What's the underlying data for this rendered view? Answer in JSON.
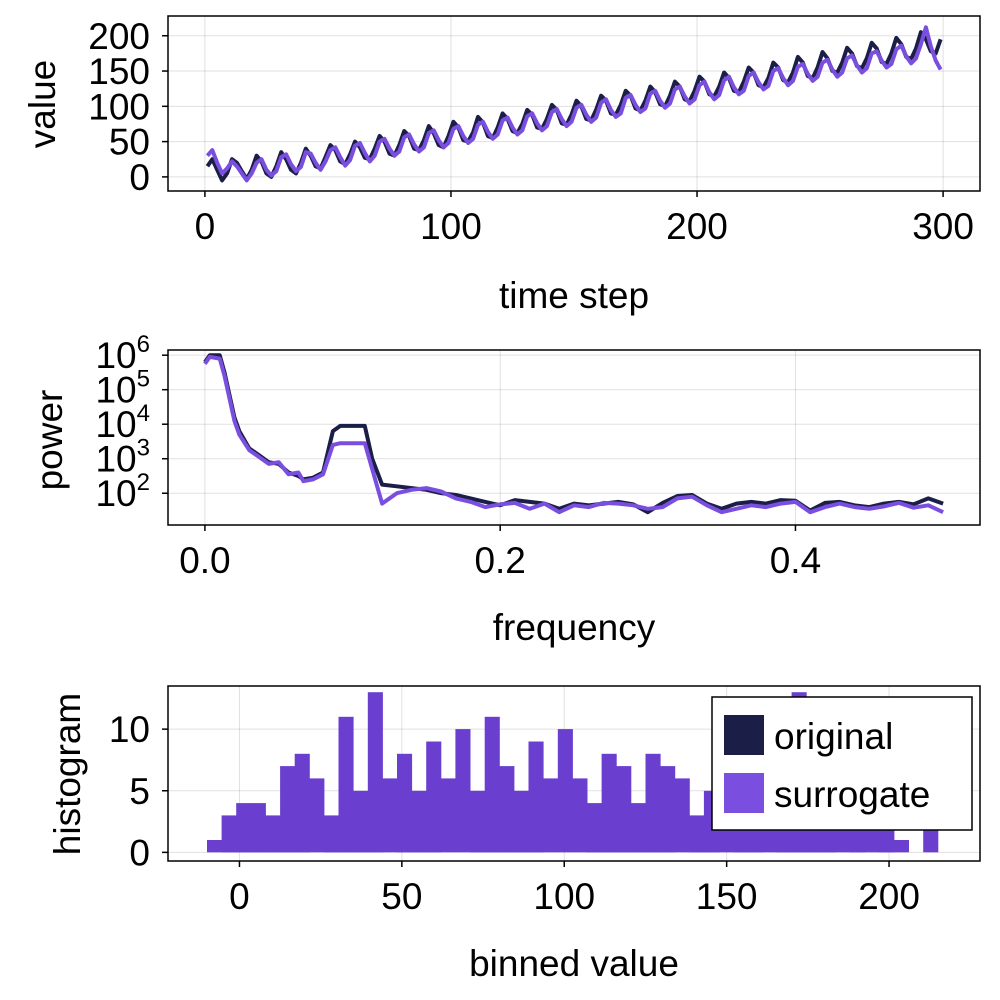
{
  "colors": {
    "original": "#1b1f48",
    "surrogate": "#7a4fe0",
    "histogram_fill": "#6a3fd0"
  },
  "legend": {
    "items": [
      {
        "label": "original",
        "color": "#1b1f48"
      },
      {
        "label": "surrogate",
        "color": "#7a4fe0"
      }
    ]
  },
  "chart_data": [
    {
      "type": "line",
      "title": "",
      "xlabel": "time step",
      "ylabel": "value",
      "xlim": [
        -15,
        315
      ],
      "ylim": [
        -20,
        228
      ],
      "xticks": [
        0,
        100,
        200,
        300
      ],
      "yticks": [
        0,
        50,
        100,
        150,
        200
      ],
      "xtick_labels": [
        "0",
        "100",
        "200",
        "300"
      ],
      "ytick_labels": [
        "0",
        "50",
        "100",
        "150",
        "200"
      ],
      "grid": true,
      "series": [
        {
          "name": "original",
          "x": [
            1,
            3,
            5,
            7,
            9,
            11,
            13,
            15,
            17,
            19,
            21,
            23,
            25,
            27,
            29,
            31,
            33,
            35,
            37,
            39,
            41,
            43,
            45,
            47,
            49,
            51,
            53,
            55,
            57,
            59,
            61,
            63,
            65,
            67,
            69,
            71,
            73,
            75,
            77,
            79,
            81,
            83,
            85,
            87,
            89,
            91,
            93,
            95,
            97,
            99,
            101,
            103,
            105,
            107,
            109,
            111,
            113,
            115,
            117,
            119,
            121,
            123,
            125,
            127,
            129,
            131,
            133,
            135,
            137,
            139,
            141,
            143,
            145,
            147,
            149,
            151,
            153,
            155,
            157,
            159,
            161,
            163,
            165,
            167,
            169,
            171,
            173,
            175,
            177,
            179,
            181,
            183,
            185,
            187,
            189,
            191,
            193,
            195,
            197,
            199,
            201,
            203,
            205,
            207,
            209,
            211,
            213,
            215,
            217,
            219,
            221,
            223,
            225,
            227,
            229,
            231,
            233,
            235,
            237,
            239,
            241,
            243,
            245,
            247,
            249,
            251,
            253,
            255,
            257,
            259,
            261,
            263,
            265,
            267,
            269,
            271,
            273,
            275,
            277,
            279,
            281,
            283,
            285,
            287,
            289,
            291,
            293,
            295,
            297,
            299
          ],
          "y": [
            15,
            25,
            10,
            -5,
            5,
            25,
            20,
            8,
            -3,
            10,
            30,
            22,
            5,
            0,
            15,
            35,
            25,
            10,
            5,
            20,
            40,
            30,
            15,
            12,
            28,
            45,
            38,
            22,
            18,
            32,
            50,
            42,
            27,
            25,
            40,
            58,
            50,
            33,
            30,
            45,
            65,
            58,
            40,
            38,
            52,
            72,
            62,
            45,
            42,
            58,
            78,
            70,
            52,
            50,
            63,
            85,
            77,
            58,
            55,
            70,
            90,
            82,
            65,
            62,
            75,
            95,
            88,
            70,
            68,
            82,
            102,
            95,
            76,
            74,
            88,
            108,
            100,
            82,
            80,
            95,
            115,
            108,
            90,
            88,
            102,
            122,
            115,
            97,
            94,
            108,
            128,
            120,
            103,
            100,
            115,
            135,
            128,
            110,
            107,
            122,
            142,
            135,
            117,
            114,
            128,
            148,
            140,
            122,
            120,
            135,
            155,
            148,
            130,
            127,
            140,
            162,
            155,
            137,
            134,
            148,
            170,
            162,
            143,
            140,
            155,
            177,
            168,
            150,
            148,
            162,
            183,
            175,
            157,
            154,
            168,
            190,
            182,
            163,
            160,
            175,
            197,
            188,
            170,
            167,
            182,
            205,
            195,
            178,
            175,
            195
          ]
        },
        {
          "name": "surrogate",
          "x": [
            1,
            3,
            5,
            7,
            9,
            11,
            13,
            15,
            17,
            19,
            21,
            23,
            25,
            27,
            29,
            31,
            33,
            35,
            37,
            39,
            41,
            43,
            45,
            47,
            49,
            51,
            53,
            55,
            57,
            59,
            61,
            63,
            65,
            67,
            69,
            71,
            73,
            75,
            77,
            79,
            81,
            83,
            85,
            87,
            89,
            91,
            93,
            95,
            97,
            99,
            101,
            103,
            105,
            107,
            109,
            111,
            113,
            115,
            117,
            119,
            121,
            123,
            125,
            127,
            129,
            131,
            133,
            135,
            137,
            139,
            141,
            143,
            145,
            147,
            149,
            151,
            153,
            155,
            157,
            159,
            161,
            163,
            165,
            167,
            169,
            171,
            173,
            175,
            177,
            179,
            181,
            183,
            185,
            187,
            189,
            191,
            193,
            195,
            197,
            199,
            201,
            203,
            205,
            207,
            209,
            211,
            213,
            215,
            217,
            219,
            221,
            223,
            225,
            227,
            229,
            231,
            233,
            235,
            237,
            239,
            241,
            243,
            245,
            247,
            249,
            251,
            253,
            255,
            257,
            259,
            261,
            263,
            265,
            267,
            269,
            271,
            273,
            275,
            277,
            279,
            281,
            283,
            285,
            287,
            289,
            291,
            293,
            295,
            297,
            299
          ],
          "y": [
            30,
            38,
            20,
            5,
            12,
            22,
            15,
            5,
            -5,
            5,
            20,
            25,
            10,
            2,
            8,
            28,
            32,
            18,
            8,
            14,
            35,
            33,
            20,
            10,
            22,
            38,
            42,
            28,
            16,
            24,
            44,
            48,
            34,
            22,
            30,
            50,
            54,
            40,
            30,
            36,
            56,
            60,
            46,
            36,
            42,
            62,
            66,
            52,
            42,
            48,
            68,
            72,
            58,
            48,
            54,
            74,
            78,
            64,
            54,
            60,
            80,
            84,
            70,
            60,
            66,
            86,
            90,
            76,
            66,
            72,
            92,
            96,
            82,
            72,
            78,
            98,
            102,
            88,
            78,
            84,
            105,
            110,
            95,
            85,
            90,
            112,
            116,
            102,
            92,
            97,
            118,
            122,
            108,
            98,
            104,
            124,
            128,
            114,
            104,
            110,
            130,
            135,
            120,
            110,
            116,
            137,
            142,
            127,
            117,
            122,
            143,
            148,
            134,
            124,
            129,
            150,
            154,
            140,
            130,
            136,
            156,
            160,
            146,
            136,
            142,
            162,
            166,
            152,
            142,
            148,
            168,
            172,
            158,
            148,
            154,
            175,
            178,
            165,
            155,
            160,
            181,
            186,
            171,
            161,
            168,
            188,
            212,
            185,
            165,
            152
          ]
        }
      ]
    },
    {
      "type": "line",
      "title": "",
      "xlabel": "frequency",
      "ylabel": "power",
      "yscale": "log10",
      "xlim": [
        -0.025,
        0.525
      ],
      "ylim_log10": [
        1.08,
        6.15
      ],
      "xticks": [
        0.0,
        0.2,
        0.4
      ],
      "xtick_labels": [
        "0.0",
        "0.2",
        "0.4"
      ],
      "yticks_log10": [
        2,
        3,
        4,
        5,
        6
      ],
      "ytick_labels": [
        {
          "base": "10",
          "exp": "2"
        },
        {
          "base": "10",
          "exp": "3"
        },
        {
          "base": "10",
          "exp": "4"
        },
        {
          "base": "10",
          "exp": "5"
        },
        {
          "base": "10",
          "exp": "6"
        }
      ],
      "grid": true,
      "series": [
        {
          "name": "original",
          "x": [
            0,
            0.0033,
            0.01,
            0.0133,
            0.02,
            0.0233,
            0.03,
            0.0367,
            0.0433,
            0.05,
            0.0567,
            0.0633,
            0.0667,
            0.0733,
            0.08,
            0.0867,
            0.0917,
            0.1,
            0.1083,
            0.1133,
            0.12,
            0.13,
            0.14,
            0.15,
            0.16,
            0.17,
            0.18,
            0.19,
            0.2,
            0.21,
            0.22,
            0.23,
            0.24,
            0.25,
            0.26,
            0.27,
            0.28,
            0.29,
            0.3,
            0.31,
            0.32,
            0.33,
            0.34,
            0.35,
            0.36,
            0.37,
            0.38,
            0.39,
            0.4,
            0.41,
            0.42,
            0.43,
            0.44,
            0.45,
            0.46,
            0.47,
            0.48,
            0.49,
            0.5
          ],
          "y_log10": [
            5.8,
            6.0,
            6.0,
            5.5,
            4.2,
            3.8,
            3.3,
            3.1,
            2.9,
            2.85,
            2.6,
            2.5,
            2.4,
            2.45,
            2.6,
            3.8,
            3.95,
            3.95,
            3.95,
            3.0,
            2.25,
            2.2,
            2.15,
            2.1,
            2.0,
            1.95,
            1.85,
            1.75,
            1.65,
            1.8,
            1.75,
            1.7,
            1.55,
            1.7,
            1.65,
            1.7,
            1.75,
            1.68,
            1.45,
            1.72,
            1.92,
            1.95,
            1.7,
            1.55,
            1.7,
            1.75,
            1.7,
            1.8,
            1.78,
            1.5,
            1.72,
            1.75,
            1.65,
            1.6,
            1.7,
            1.75,
            1.68,
            1.85,
            1.7
          ]
        },
        {
          "name": "surrogate",
          "x": [
            0,
            0.0033,
            0.01,
            0.0133,
            0.02,
            0.0233,
            0.03,
            0.0367,
            0.0433,
            0.05,
            0.0567,
            0.0633,
            0.0667,
            0.0733,
            0.08,
            0.0867,
            0.0917,
            0.1,
            0.1083,
            0.1133,
            0.12,
            0.13,
            0.14,
            0.15,
            0.16,
            0.17,
            0.18,
            0.19,
            0.2,
            0.21,
            0.22,
            0.23,
            0.24,
            0.25,
            0.26,
            0.27,
            0.28,
            0.29,
            0.3,
            0.31,
            0.32,
            0.33,
            0.34,
            0.35,
            0.36,
            0.37,
            0.38,
            0.39,
            0.4,
            0.41,
            0.42,
            0.43,
            0.44,
            0.45,
            0.46,
            0.47,
            0.48,
            0.49,
            0.5
          ],
          "y_log10": [
            5.75,
            5.95,
            5.9,
            5.4,
            4.1,
            3.7,
            3.25,
            3.05,
            2.85,
            2.9,
            2.55,
            2.6,
            2.35,
            2.4,
            2.55,
            3.4,
            3.45,
            3.45,
            3.45,
            2.7,
            1.7,
            2.0,
            2.1,
            2.15,
            2.05,
            1.85,
            1.75,
            1.6,
            1.68,
            1.72,
            1.55,
            1.7,
            1.45,
            1.65,
            1.6,
            1.72,
            1.7,
            1.65,
            1.55,
            1.6,
            1.85,
            1.9,
            1.65,
            1.45,
            1.55,
            1.65,
            1.6,
            1.7,
            1.75,
            1.45,
            1.6,
            1.7,
            1.6,
            1.55,
            1.62,
            1.72,
            1.58,
            1.65,
            1.45
          ]
        }
      ]
    },
    {
      "type": "bar",
      "title": "",
      "xlabel": "binned value",
      "ylabel": "histogram",
      "xlim": [
        -22,
        228
      ],
      "ylim": [
        -0.7,
        13.5
      ],
      "xticks": [
        0,
        50,
        100,
        150,
        200
      ],
      "xtick_labels": [
        "0",
        "50",
        "100",
        "150",
        "200"
      ],
      "yticks": [
        0,
        5,
        10
      ],
      "ytick_labels": [
        "0",
        "5",
        "10"
      ],
      "grid": true,
      "bin_width": 4.5,
      "series": [
        {
          "name": "surrogate",
          "bin_start": [
            -10,
            -5.5,
            -1,
            3.5,
            8,
            12.5,
            17,
            21.5,
            26,
            30.5,
            35,
            39.5,
            44,
            48.5,
            53,
            57.5,
            62,
            66.5,
            71,
            75.5,
            80,
            84.5,
            89,
            93.5,
            98,
            102.5,
            107,
            111.5,
            116,
            120.5,
            125,
            129.5,
            134,
            138.5,
            143,
            147.5,
            152,
            156.5,
            161,
            165.5,
            170,
            174.5,
            179,
            183.5,
            188,
            192.5,
            197,
            201.5,
            206,
            210.5
          ],
          "counts": [
            1,
            3,
            4,
            4,
            3,
            7,
            8,
            6,
            3,
            11,
            5,
            13,
            6,
            8,
            5,
            9,
            6,
            10,
            5,
            11,
            7,
            5,
            9,
            6,
            10,
            6,
            4,
            8,
            7,
            4,
            8,
            7,
            6,
            3,
            5,
            6,
            3,
            5,
            6,
            4,
            13,
            5,
            7,
            6,
            8,
            6,
            4,
            1,
            0,
            2
          ]
        }
      ]
    }
  ]
}
